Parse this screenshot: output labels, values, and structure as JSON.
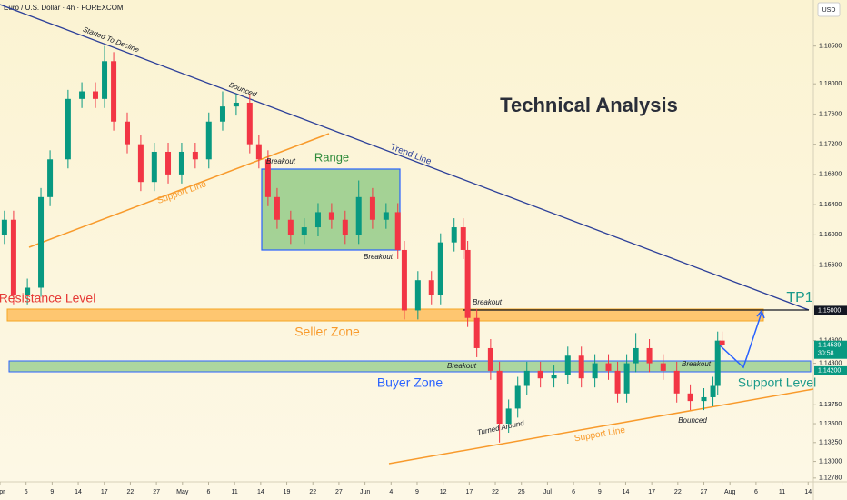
{
  "header": {
    "symbol": "Euro / U.S. Dollar · 4h · FOREXCOM",
    "currency": "USD"
  },
  "chart_data": {
    "type": "candlestick",
    "title": "Technical Analysis",
    "x": [
      0.17,
      0.52,
      1.05,
      1.57,
      1.92,
      2.61,
      3.14,
      3.66,
      4.01,
      4.36,
      4.88,
      5.4,
      5.92,
      6.45,
      6.97,
      7.49,
      8.01,
      8.54,
      9.06,
      9.58,
      9.93,
      10.28,
      10.63,
      11.15,
      11.67,
      12.2,
      12.72,
      13.24,
      13.76,
      14.29,
      14.81,
      15.26,
      15.51,
      16.03,
      16.55,
      16.9,
      17.42,
      17.77,
      17.94,
      18.29,
      18.82,
      19.16,
      19.51,
      19.86,
      20.21,
      20.73,
      21.25,
      21.78,
      22.3,
      22.82,
      23.34,
      23.69,
      24.04,
      24.39,
      24.91,
      25.44,
      25.96,
      26.48,
      27.0,
      27.35,
      27.53,
      27.7
    ],
    "open": [
      1.16,
      1.162,
      1.152,
      1.153,
      1.165,
      1.17,
      1.178,
      1.179,
      1.178,
      1.183,
      1.175,
      1.172,
      1.167,
      1.171,
      1.168,
      1.171,
      1.17,
      1.175,
      1.177,
      1.1775,
      1.172,
      1.17,
      1.165,
      1.162,
      1.16,
      1.161,
      1.163,
      1.162,
      1.16,
      1.165,
      1.162,
      1.163,
      1.158,
      1.15,
      1.154,
      1.152,
      1.159,
      1.161,
      1.158,
      1.149,
      1.145,
      1.142,
      1.135,
      1.137,
      1.14,
      1.142,
      1.141,
      1.1415,
      1.144,
      1.141,
      1.143,
      1.142,
      1.139,
      1.143,
      1.145,
      1.143,
      1.142,
      1.139,
      1.138,
      1.1385,
      1.14,
      1.146
    ],
    "high": [
      1.1632,
      1.1632,
      1.1542,
      1.1662,
      1.1712,
      1.1792,
      1.1802,
      1.1802,
      1.185,
      1.1842,
      1.1762,
      1.1732,
      1.1722,
      1.1722,
      1.1722,
      1.1722,
      1.1762,
      1.179,
      1.1787,
      1.1787,
      1.1732,
      1.1712,
      1.1662,
      1.1632,
      1.1622,
      1.1642,
      1.1642,
      1.1632,
      1.1672,
      1.1662,
      1.1642,
      1.1642,
      1.1592,
      1.1552,
      1.1552,
      1.1602,
      1.1622,
      1.1622,
      1.1592,
      1.1502,
      1.1462,
      1.1432,
      1.1382,
      1.1412,
      1.1432,
      1.1432,
      1.1427,
      1.1452,
      1.1452,
      1.1442,
      1.1442,
      1.1432,
      1.1442,
      1.147,
      1.1462,
      1.1442,
      1.1432,
      1.1402,
      1.1397,
      1.1412,
      1.1472,
      1.1472
    ],
    "low": [
      1.1588,
      1.1508,
      1.1508,
      1.1518,
      1.1638,
      1.1688,
      1.1768,
      1.1768,
      1.1768,
      1.1738,
      1.1708,
      1.1658,
      1.1658,
      1.1668,
      1.1668,
      1.1688,
      1.1688,
      1.1738,
      1.1758,
      1.1708,
      1.1688,
      1.1638,
      1.1608,
      1.1588,
      1.1588,
      1.1598,
      1.1608,
      1.1588,
      1.1588,
      1.1608,
      1.1608,
      1.1568,
      1.1488,
      1.1488,
      1.1508,
      1.1508,
      1.1578,
      1.1568,
      1.1478,
      1.1438,
      1.1408,
      1.1325,
      1.1338,
      1.1358,
      1.1388,
      1.1398,
      1.1398,
      1.1403,
      1.1398,
      1.1398,
      1.1408,
      1.1378,
      1.1378,
      1.1418,
      1.1418,
      1.1408,
      1.1378,
      1.1368,
      1.1368,
      1.1373,
      1.1388,
      1.1442
    ],
    "close": [
      1.162,
      1.152,
      1.153,
      1.165,
      1.17,
      1.178,
      1.179,
      1.178,
      1.183,
      1.175,
      1.172,
      1.167,
      1.171,
      1.168,
      1.171,
      1.17,
      1.175,
      1.177,
      1.1775,
      1.172,
      1.17,
      1.165,
      1.162,
      1.16,
      1.161,
      1.163,
      1.162,
      1.16,
      1.165,
      1.162,
      1.163,
      1.158,
      1.15,
      1.154,
      1.152,
      1.159,
      1.161,
      1.158,
      1.149,
      1.145,
      1.142,
      1.135,
      1.137,
      1.14,
      1.142,
      1.141,
      1.1415,
      1.144,
      1.141,
      1.143,
      1.142,
      1.139,
      1.143,
      1.145,
      1.143,
      1.142,
      1.139,
      1.138,
      1.1385,
      1.14,
      1.146,
      1.14539
    ],
    "up_color": "#089981",
    "down_color": "#f23645",
    "xlim": [
      0,
      31.2
    ],
    "xticks": [
      {
        "value": 0,
        "label": "Apr"
      },
      {
        "value": 1,
        "label": "6"
      },
      {
        "value": 2,
        "label": "9"
      },
      {
        "value": 3,
        "label": "14"
      },
      {
        "value": 4,
        "label": "17"
      },
      {
        "value": 5,
        "label": "22"
      },
      {
        "value": 6,
        "label": "27"
      },
      {
        "value": 7,
        "label": "May"
      },
      {
        "value": 8,
        "label": "6"
      },
      {
        "value": 9,
        "label": "11"
      },
      {
        "value": 10,
        "label": "14"
      },
      {
        "value": 11,
        "label": "19"
      },
      {
        "value": 12,
        "label": "22"
      },
      {
        "value": 13,
        "label": "27"
      },
      {
        "value": 14,
        "label": "Jun"
      },
      {
        "value": 15,
        "label": "4"
      },
      {
        "value": 16,
        "label": "9"
      },
      {
        "value": 17,
        "label": "12"
      },
      {
        "value": 18,
        "label": "17"
      },
      {
        "value": 19,
        "label": "22"
      },
      {
        "value": 20,
        "label": "25"
      },
      {
        "value": 21,
        "label": "Jul"
      },
      {
        "value": 22,
        "label": "6"
      },
      {
        "value": 23,
        "label": "9"
      },
      {
        "value": 24,
        "label": "14"
      },
      {
        "value": 25,
        "label": "17"
      },
      {
        "value": 26,
        "label": "22"
      },
      {
        "value": 27,
        "label": "27"
      },
      {
        "value": 28,
        "label": "Aug"
      },
      {
        "value": 29,
        "label": "6"
      },
      {
        "value": 30,
        "label": "11"
      },
      {
        "value": 31,
        "label": "14"
      }
    ],
    "ylim": [
      1.1273,
      1.1911
    ],
    "yticks": [
      {
        "value": 1.185,
        "label": "1.18500"
      },
      {
        "value": 1.18,
        "label": "1.18000"
      },
      {
        "value": 1.176,
        "label": "1.17600"
      },
      {
        "value": 1.172,
        "label": "1.17200"
      },
      {
        "value": 1.168,
        "label": "1.16800"
      },
      {
        "value": 1.164,
        "label": "1.16400"
      },
      {
        "value": 1.16,
        "label": "1.16000"
      },
      {
        "value": 1.156,
        "label": "1.15600"
      },
      {
        "value": 1.146,
        "label": "1.14600"
      },
      {
        "value": 1.143,
        "label": "1.14300"
      },
      {
        "value": 1.1375,
        "label": "1.13750"
      },
      {
        "value": 1.135,
        "label": "1.13500"
      },
      {
        "value": 1.1325,
        "label": "1.13250"
      },
      {
        "value": 1.13,
        "label": "1.13000"
      },
      {
        "value": 1.1278,
        "label": "1.12780"
      }
    ],
    "price_markers": [
      {
        "value": 1.15,
        "label": "1.15000",
        "color": "#131722"
      },
      {
        "value": 1.14539,
        "label": "1.14539",
        "sublabel": "30:58",
        "color": "#089981"
      },
      {
        "value": 1.142,
        "label": "1.14200",
        "color": "#089981"
      }
    ],
    "annotations": [
      "Started To Decline",
      "Bounced",
      "Breakout",
      "Range",
      "Trend Line",
      "Support Line",
      "Breakout",
      "Resistance Level",
      "TP1",
      "Breakout",
      "Seller Zone",
      "Breakout",
      "Breakout",
      "Buyer Zone",
      "Support Level",
      "Turned Around",
      "Support Line",
      "Bounced"
    ]
  }
}
